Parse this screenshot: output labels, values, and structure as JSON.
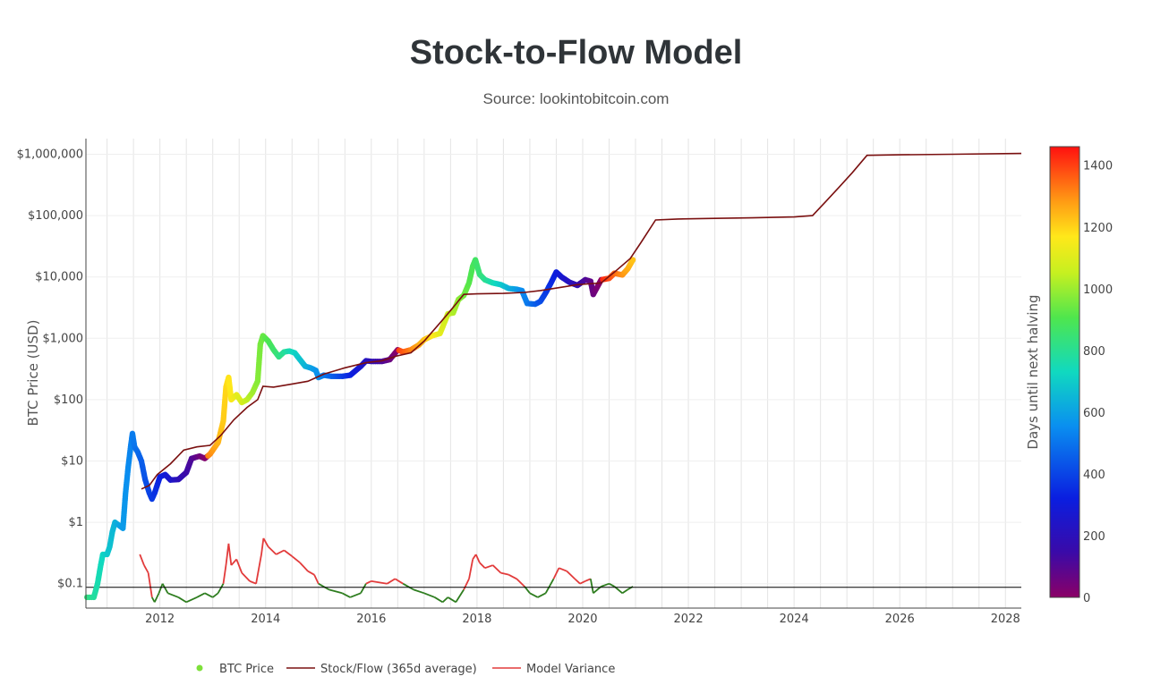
{
  "title": "Stock-to-Flow Model",
  "subtitle": "Source: lookintobitcoin.com",
  "colors": {
    "stock_flow": "#7a1010",
    "variance_high": "#e23b3b",
    "variance_low": "#2e7d1f",
    "baseline": "#000000",
    "legend_price_marker": "#7ee03a"
  },
  "chart_data": {
    "type": "scatter",
    "yscale": "log",
    "x_range": [
      2010.6,
      2028.3
    ],
    "y_range": [
      0.04,
      1800000
    ],
    "ylabel": "BTC Price (USD)",
    "x_ticks": [
      "2012",
      "2014",
      "2016",
      "2018",
      "2020",
      "2022",
      "2024",
      "2026",
      "2028"
    ],
    "y_ticks": [
      {
        "value": 1000000,
        "label": "$1,000,000"
      },
      {
        "value": 100000,
        "label": "$100,000"
      },
      {
        "value": 10000,
        "label": "$10,000"
      },
      {
        "value": 1000,
        "label": "$1,000"
      },
      {
        "value": 100,
        "label": "$100"
      },
      {
        "value": 10,
        "label": "$10"
      },
      {
        "value": 1,
        "label": "$1"
      },
      {
        "value": 0.1,
        "label": "$0.1"
      }
    ],
    "grid": true,
    "legend_position": "bottom",
    "colorbar": {
      "title": "Days until next halving",
      "ticks": [
        "0",
        "200",
        "400",
        "600",
        "800",
        "1000",
        "1200",
        "1400"
      ],
      "range": [
        0,
        1460
      ]
    },
    "series": [
      {
        "name": "BTC Price",
        "mode": "markers",
        "points": [
          [
            2010.62,
            0.06
          ],
          [
            2010.75,
            0.06
          ],
          [
            2010.82,
            0.1
          ],
          [
            2010.88,
            0.2
          ],
          [
            2010.92,
            0.3
          ],
          [
            2011.0,
            0.3
          ],
          [
            2011.05,
            0.4
          ],
          [
            2011.1,
            0.7
          ],
          [
            2011.15,
            1.0
          ],
          [
            2011.22,
            0.9
          ],
          [
            2011.3,
            0.8
          ],
          [
            2011.35,
            3
          ],
          [
            2011.4,
            8
          ],
          [
            2011.45,
            18
          ],
          [
            2011.48,
            28
          ],
          [
            2011.52,
            17
          ],
          [
            2011.58,
            14
          ],
          [
            2011.65,
            10
          ],
          [
            2011.72,
            5
          ],
          [
            2011.8,
            3
          ],
          [
            2011.85,
            2.4
          ],
          [
            2011.9,
            3
          ],
          [
            2012.0,
            5.5
          ],
          [
            2012.1,
            6
          ],
          [
            2012.2,
            4.9
          ],
          [
            2012.35,
            5
          ],
          [
            2012.5,
            6.5
          ],
          [
            2012.6,
            11
          ],
          [
            2012.75,
            12
          ],
          [
            2012.85,
            11
          ],
          [
            2012.95,
            13
          ],
          [
            2013.1,
            20
          ],
          [
            2013.2,
            45
          ],
          [
            2013.25,
            160
          ],
          [
            2013.3,
            230
          ],
          [
            2013.35,
            100
          ],
          [
            2013.45,
            120
          ],
          [
            2013.55,
            90
          ],
          [
            2013.65,
            100
          ],
          [
            2013.75,
            130
          ],
          [
            2013.85,
            200
          ],
          [
            2013.9,
            800
          ],
          [
            2013.95,
            1100
          ],
          [
            2014.05,
            900
          ],
          [
            2014.15,
            650
          ],
          [
            2014.25,
            500
          ],
          [
            2014.35,
            600
          ],
          [
            2014.45,
            620
          ],
          [
            2014.55,
            580
          ],
          [
            2014.65,
            450
          ],
          [
            2014.75,
            350
          ],
          [
            2014.85,
            330
          ],
          [
            2014.95,
            300
          ],
          [
            2015.0,
            230
          ],
          [
            2015.1,
            250
          ],
          [
            2015.25,
            240
          ],
          [
            2015.45,
            240
          ],
          [
            2015.6,
            250
          ],
          [
            2015.8,
            350
          ],
          [
            2015.9,
            430
          ],
          [
            2016.0,
            420
          ],
          [
            2016.2,
            420
          ],
          [
            2016.35,
            450
          ],
          [
            2016.5,
            650
          ],
          [
            2016.6,
            600
          ],
          [
            2016.75,
            650
          ],
          [
            2016.9,
            780
          ],
          [
            2017.0,
            950
          ],
          [
            2017.15,
            1100
          ],
          [
            2017.3,
            1200
          ],
          [
            2017.45,
            2500
          ],
          [
            2017.55,
            2600
          ],
          [
            2017.65,
            4300
          ],
          [
            2017.75,
            5000
          ],
          [
            2017.85,
            8000
          ],
          [
            2017.92,
            15000
          ],
          [
            2017.97,
            19000
          ],
          [
            2018.05,
            11000
          ],
          [
            2018.15,
            9000
          ],
          [
            2018.3,
            8000
          ],
          [
            2018.45,
            7500
          ],
          [
            2018.6,
            6500
          ],
          [
            2018.75,
            6300
          ],
          [
            2018.85,
            6000
          ],
          [
            2018.95,
            3700
          ],
          [
            2019.1,
            3600
          ],
          [
            2019.2,
            4000
          ],
          [
            2019.3,
            5500
          ],
          [
            2019.4,
            8000
          ],
          [
            2019.5,
            12000
          ],
          [
            2019.6,
            10000
          ],
          [
            2019.75,
            8200
          ],
          [
            2019.9,
            7300
          ],
          [
            2020.05,
            9000
          ],
          [
            2020.15,
            8500
          ],
          [
            2020.2,
            5200
          ],
          [
            2020.35,
            9000
          ],
          [
            2020.5,
            9500
          ],
          [
            2020.6,
            11500
          ],
          [
            2020.75,
            10800
          ],
          [
            2020.85,
            13500
          ],
          [
            2020.95,
            19000
          ]
        ]
      },
      {
        "name": "Stock/Flow (365d average)",
        "mode": "lines",
        "points": [
          [
            2011.65,
            3.5
          ],
          [
            2011.8,
            4
          ],
          [
            2011.95,
            6
          ],
          [
            2012.2,
            9
          ],
          [
            2012.45,
            15
          ],
          [
            2012.7,
            17
          ],
          [
            2012.95,
            18
          ],
          [
            2013.15,
            26
          ],
          [
            2013.4,
            47
          ],
          [
            2013.65,
            75
          ],
          [
            2013.85,
            100
          ],
          [
            2013.95,
            165
          ],
          [
            2014.15,
            160
          ],
          [
            2014.5,
            180
          ],
          [
            2014.8,
            200
          ],
          [
            2015.1,
            260
          ],
          [
            2015.5,
            330
          ],
          [
            2015.9,
            400
          ],
          [
            2016.2,
            430
          ],
          [
            2016.5,
            520
          ],
          [
            2016.75,
            580
          ],
          [
            2017.0,
            900
          ],
          [
            2017.35,
            2000
          ],
          [
            2017.55,
            3200
          ],
          [
            2017.75,
            5200
          ],
          [
            2018.0,
            5300
          ],
          [
            2018.5,
            5400
          ],
          [
            2018.9,
            5600
          ],
          [
            2019.2,
            6000
          ],
          [
            2019.6,
            6800
          ],
          [
            2019.9,
            7500
          ],
          [
            2020.1,
            7700
          ],
          [
            2020.35,
            8000
          ],
          [
            2020.6,
            12000
          ],
          [
            2020.9,
            20000
          ],
          [
            2021.1,
            36000
          ],
          [
            2021.38,
            85000
          ],
          [
            2021.8,
            88000
          ],
          [
            2022.5,
            90000
          ],
          [
            2023.2,
            92000
          ],
          [
            2024.0,
            95000
          ],
          [
            2024.35,
            100000
          ],
          [
            2024.6,
            170000
          ],
          [
            2024.85,
            290000
          ],
          [
            2025.1,
            500000
          ],
          [
            2025.38,
            960000
          ],
          [
            2026.0,
            980000
          ],
          [
            2027.0,
            1000000
          ],
          [
            2028.3,
            1030000
          ]
        ]
      },
      {
        "name": "Model Variance",
        "mode": "lines",
        "points": [
          [
            2011.62,
            0.3
          ],
          [
            2011.7,
            0.2
          ],
          [
            2011.78,
            0.15
          ],
          [
            2011.85,
            0.06
          ],
          [
            2011.9,
            0.05
          ],
          [
            2011.98,
            0.07
          ],
          [
            2012.05,
            0.1
          ],
          [
            2012.15,
            0.07
          ],
          [
            2012.35,
            0.06
          ],
          [
            2012.5,
            0.05
          ],
          [
            2012.7,
            0.06
          ],
          [
            2012.85,
            0.07
          ],
          [
            2013.0,
            0.06
          ],
          [
            2013.1,
            0.07
          ],
          [
            2013.2,
            0.1
          ],
          [
            2013.25,
            0.2
          ],
          [
            2013.3,
            0.45
          ],
          [
            2013.35,
            0.2
          ],
          [
            2013.45,
            0.25
          ],
          [
            2013.55,
            0.15
          ],
          [
            2013.7,
            0.11
          ],
          [
            2013.82,
            0.1
          ],
          [
            2013.92,
            0.3
          ],
          [
            2013.96,
            0.55
          ],
          [
            2014.05,
            0.4
          ],
          [
            2014.2,
            0.3
          ],
          [
            2014.35,
            0.35
          ],
          [
            2014.5,
            0.28
          ],
          [
            2014.65,
            0.22
          ],
          [
            2014.8,
            0.16
          ],
          [
            2014.92,
            0.14
          ],
          [
            2015.0,
            0.1
          ],
          [
            2015.2,
            0.08
          ],
          [
            2015.45,
            0.07
          ],
          [
            2015.6,
            0.06
          ],
          [
            2015.8,
            0.07
          ],
          [
            2015.9,
            0.1
          ],
          [
            2016.0,
            0.11
          ],
          [
            2016.3,
            0.1
          ],
          [
            2016.45,
            0.12
          ],
          [
            2016.6,
            0.1
          ],
          [
            2016.8,
            0.08
          ],
          [
            2017.0,
            0.07
          ],
          [
            2017.2,
            0.06
          ],
          [
            2017.35,
            0.05
          ],
          [
            2017.45,
            0.06
          ],
          [
            2017.6,
            0.05
          ],
          [
            2017.75,
            0.08
          ],
          [
            2017.85,
            0.12
          ],
          [
            2017.92,
            0.25
          ],
          [
            2017.98,
            0.3
          ],
          [
            2018.05,
            0.22
          ],
          [
            2018.15,
            0.18
          ],
          [
            2018.3,
            0.2
          ],
          [
            2018.45,
            0.15
          ],
          [
            2018.6,
            0.14
          ],
          [
            2018.75,
            0.12
          ],
          [
            2018.9,
            0.09
          ],
          [
            2019.0,
            0.07
          ],
          [
            2019.15,
            0.06
          ],
          [
            2019.3,
            0.07
          ],
          [
            2019.45,
            0.12
          ],
          [
            2019.55,
            0.18
          ],
          [
            2019.7,
            0.16
          ],
          [
            2019.85,
            0.12
          ],
          [
            2019.95,
            0.1
          ],
          [
            2020.05,
            0.11
          ],
          [
            2020.15,
            0.12
          ],
          [
            2020.2,
            0.07
          ],
          [
            2020.35,
            0.09
          ],
          [
            2020.5,
            0.1
          ],
          [
            2020.6,
            0.09
          ],
          [
            2020.75,
            0.07
          ],
          [
            2020.85,
            0.08
          ],
          [
            2020.95,
            0.09
          ]
        ]
      }
    ]
  },
  "legend": [
    {
      "label": "BTC Price",
      "style": "marker"
    },
    {
      "label": "Stock/Flow (365d average)",
      "style": "line"
    },
    {
      "label": "Model Variance",
      "style": "line"
    }
  ]
}
